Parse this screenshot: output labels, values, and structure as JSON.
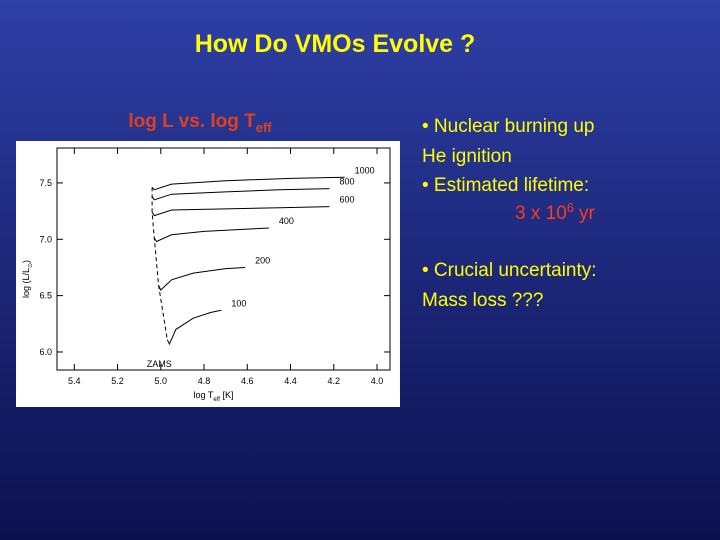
{
  "title": "How Do VMOs Evolve ?",
  "chart_heading": {
    "text": "log L vs. log T",
    "subscript": "eff"
  },
  "bullets": {
    "first": [
      "• Nuclear burning up",
      "He ignition",
      "• Estimated lifetime:"
    ],
    "lifetime": {
      "base": "3 x 10",
      "exponent": "6",
      "unit": "yr"
    },
    "second": [
      "• Crucial uncertainty:",
      "Mass loss ???"
    ]
  },
  "chart_data": {
    "type": "line",
    "x_label": {
      "text": "log T",
      "subscript": "eff",
      "suffix": " [K]"
    },
    "y_label": {
      "text": "log (L/L",
      "subscript": "⊙",
      "suffix": ")"
    },
    "xlim": [
      5.48,
      3.94
    ],
    "ylim": [
      5.84,
      7.81
    ],
    "xticks": [
      5.4,
      5.2,
      {
        "value": 5,
        "label": "5.0"
      },
      4.8,
      4.6,
      4.4,
      4.2,
      {
        "value": 4,
        "label": "4.0"
      }
    ],
    "yticks": [
      {
        "value": 6,
        "label": "6.0"
      },
      6.5,
      {
        "value": 7,
        "label": "7.0"
      },
      7.5
    ],
    "series": [
      {
        "name": "1000",
        "color": "#000000",
        "x": [
          5.04,
          5.03,
          4.95,
          4.7,
          4.4,
          4.15
        ],
        "values": [
          7.46,
          7.44,
          7.49,
          7.52,
          7.54,
          7.55
        ]
      },
      {
        "name": "800",
        "color": "#000000",
        "x": [
          5.04,
          5.03,
          4.95,
          4.7,
          4.45,
          4.22
        ],
        "values": [
          7.38,
          7.35,
          7.4,
          7.42,
          7.44,
          7.45
        ]
      },
      {
        "name": "600",
        "color": "#000000",
        "x": [
          5.04,
          5.03,
          4.95,
          4.7,
          4.45,
          4.22
        ],
        "values": [
          7.24,
          7.21,
          7.26,
          7.27,
          7.28,
          7.29
        ]
      },
      {
        "name": "400",
        "color": "#000000",
        "x": [
          5.03,
          5.02,
          4.95,
          4.8,
          4.6,
          4.5
        ],
        "values": [
          7.01,
          6.98,
          7.04,
          7.07,
          7.09,
          7.1
        ]
      },
      {
        "name": "200",
        "color": "#000000",
        "x": [
          5.01,
          5.0,
          4.95,
          4.85,
          4.7,
          4.61
        ],
        "values": [
          6.59,
          6.55,
          6.64,
          6.7,
          6.74,
          6.75
        ]
      },
      {
        "name": "100",
        "color": "#000000",
        "x": [
          4.97,
          4.96,
          4.93,
          4.85,
          4.77,
          4.72
        ],
        "values": [
          6.11,
          6.07,
          6.2,
          6.3,
          6.35,
          6.37
        ]
      },
      {
        "name": "ZAMS",
        "color": "#000000",
        "dashed": true,
        "x": [
          5.04,
          5.04,
          5.04,
          5.03,
          5.01,
          4.97
        ],
        "values": [
          7.46,
          7.38,
          7.24,
          7.01,
          6.59,
          6.11
        ]
      }
    ]
  }
}
